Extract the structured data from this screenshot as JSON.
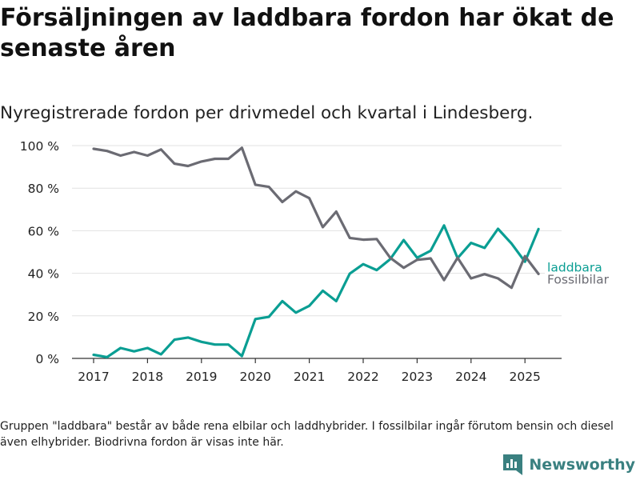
{
  "title": "Försäljningen av laddbara fordon har ökat de senaste åren",
  "subtitle": "Nyregistrerade fordon per drivmedel och kvartal i Lindesberg.",
  "footnote": "Gruppen \"laddbara\" består av både rena elbilar och laddhybrider. I fossilbilar ingår förutom bensin och diesel även elhybrider. Biodrivna fordon är visas inte här.",
  "brand": {
    "name": "Newsworthy",
    "icon": "newsworthy-logo-icon",
    "color": "#3a8080"
  },
  "chart_data": {
    "type": "line",
    "ylim": [
      0,
      100
    ],
    "yticks": [
      0,
      20,
      40,
      60,
      80,
      100
    ],
    "ytick_labels": [
      "0 %",
      "20 %",
      "40 %",
      "60 %",
      "80 %",
      "100 %"
    ],
    "xticks": [
      2017,
      2018,
      2019,
      2020,
      2021,
      2022,
      2023,
      2024,
      2025
    ],
    "xtick_labels": [
      "2017",
      "2018",
      "2019",
      "2020",
      "2021",
      "2022",
      "2023",
      "2024",
      "2025"
    ],
    "grid": true,
    "x": [
      "2017-Q1",
      "2017-Q2",
      "2017-Q3",
      "2017-Q4",
      "2018-Q1",
      "2018-Q2",
      "2018-Q3",
      "2018-Q4",
      "2019-Q1",
      "2019-Q2",
      "2019-Q3",
      "2019-Q4",
      "2020-Q1",
      "2020-Q2",
      "2020-Q3",
      "2020-Q4",
      "2021-Q1",
      "2021-Q2",
      "2021-Q3",
      "2021-Q4",
      "2022-Q1",
      "2022-Q2",
      "2022-Q3",
      "2022-Q4",
      "2023-Q1",
      "2023-Q2",
      "2023-Q3",
      "2023-Q4",
      "2024-Q1",
      "2024-Q2",
      "2024-Q3",
      "2024-Q4",
      "2025-Q1",
      "2025-Q2"
    ],
    "series": [
      {
        "name": "Fossilbilar",
        "color": "#6b6b73",
        "values": [
          98.5,
          97.5,
          95.3,
          97.0,
          95.3,
          98.2,
          91.5,
          90.4,
          92.5,
          93.8,
          93.8,
          99.0,
          81.6,
          80.6,
          73.5,
          78.5,
          75.3,
          61.7,
          69.0,
          56.6,
          55.8,
          56.1,
          47.3,
          42.6,
          46.3,
          47.0,
          36.8,
          47.3,
          37.6,
          39.6,
          37.6,
          33.2,
          48.1,
          39.7
        ]
      },
      {
        "name": "Laddbara",
        "color": "#0a9e93",
        "values": [
          1.7,
          0.6,
          4.9,
          3.3,
          4.9,
          1.9,
          8.8,
          9.8,
          7.8,
          6.5,
          6.5,
          1.1,
          18.5,
          19.5,
          26.9,
          21.5,
          24.7,
          31.8,
          26.9,
          39.8,
          44.3,
          41.5,
          46.6,
          55.6,
          47.3,
          50.6,
          62.5,
          47.1,
          54.3,
          51.9,
          60.9,
          54.0,
          45.4,
          60.8
        ]
      }
    ]
  }
}
